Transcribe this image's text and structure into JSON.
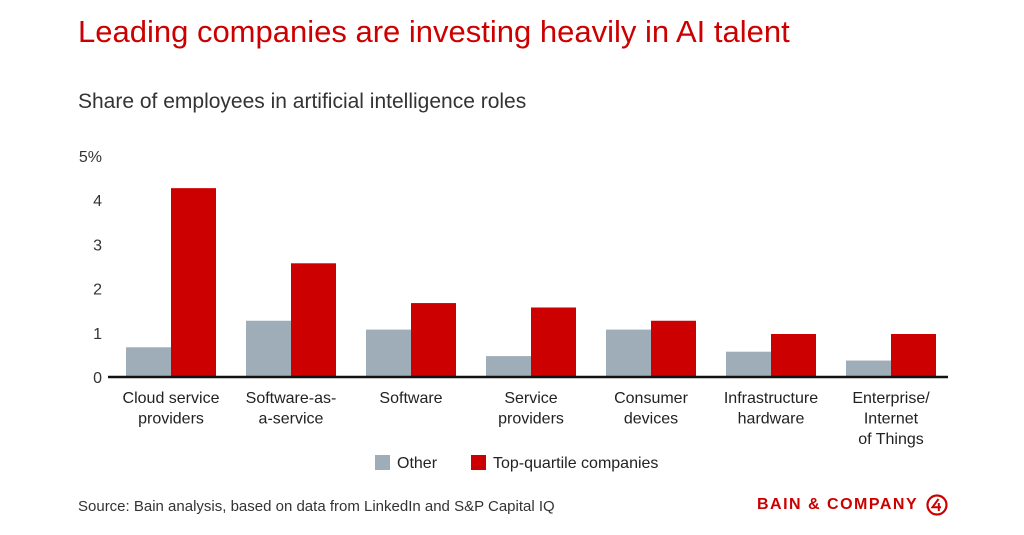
{
  "title": "Leading companies are investing heavily in AI talent",
  "subtitle": "Share of employees in artificial intelligence roles",
  "source": "Source: Bain analysis, based on data from LinkedIn and S&P Capital IQ",
  "logo": {
    "text": "BAIN & COMPANY"
  },
  "colors": {
    "other": "#9fadb8",
    "top": "#cc0000",
    "title": "#cc0000",
    "axis": "#111111"
  },
  "chart_data": {
    "type": "bar",
    "title": "Leading companies are investing heavily in AI talent",
    "ylabel": "Share of employees in artificial intelligence roles",
    "ylim": [
      0,
      5
    ],
    "yticks": [
      "0",
      "1",
      "2",
      "3",
      "4",
      "5%"
    ],
    "categories": [
      [
        "Cloud service",
        "providers"
      ],
      [
        "Software-as-",
        "a-service"
      ],
      [
        "Software"
      ],
      [
        "Service",
        "providers"
      ],
      [
        "Consumer",
        "devices"
      ],
      [
        "Infrastructure",
        "hardware"
      ],
      [
        "Enterprise/",
        "Internet",
        "of Things"
      ]
    ],
    "series": [
      {
        "name": "Other",
        "values": [
          0.65,
          1.25,
          1.05,
          0.45,
          1.05,
          0.55,
          0.35
        ]
      },
      {
        "name": "Top-quartile companies",
        "values": [
          4.25,
          2.55,
          1.65,
          1.55,
          1.25,
          0.95,
          0.95
        ]
      }
    ],
    "legend": "bottom-center"
  }
}
